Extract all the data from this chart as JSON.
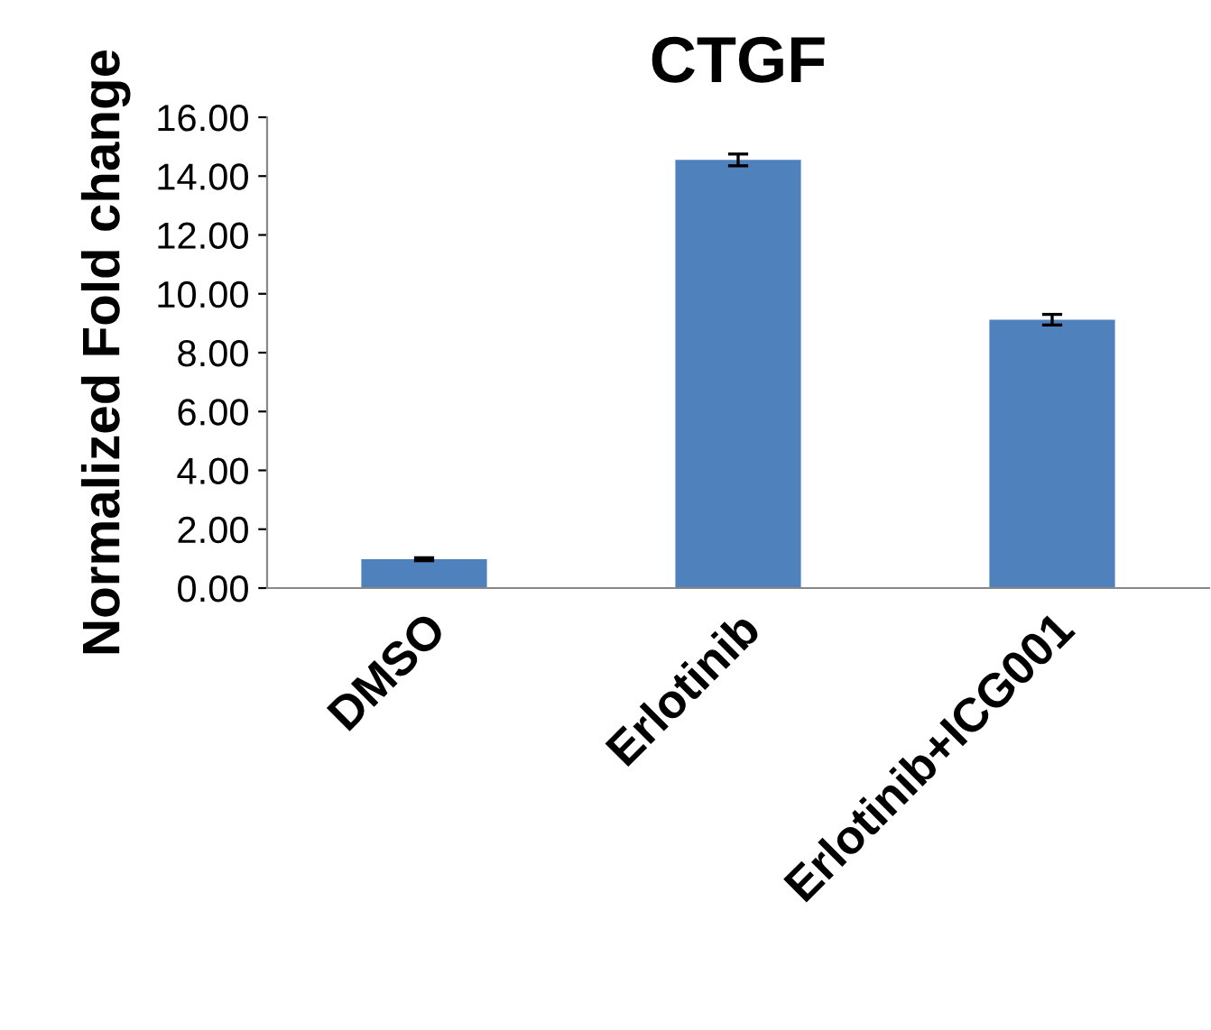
{
  "chart_data": {
    "type": "bar",
    "title": "CTGF",
    "ylabel": "Normalized Fold change",
    "categories": [
      "DMSO",
      "Erlotinib",
      "Erlotinib+ICG001"
    ],
    "values": [
      0.98,
      14.55,
      9.12
    ],
    "errors": [
      0.05,
      0.2,
      0.18
    ],
    "color": "#4f81bd",
    "ylim": [
      0,
      16
    ],
    "yticks": [
      {
        "value": 0,
        "label": "0.00"
      },
      {
        "value": 2,
        "label": "2.00"
      },
      {
        "value": 4,
        "label": "4.00"
      },
      {
        "value": 6,
        "label": "6.00"
      },
      {
        "value": 8,
        "label": "8.00"
      },
      {
        "value": 10,
        "label": "10.00"
      },
      {
        "value": 12,
        "label": "12.00"
      },
      {
        "value": 14,
        "label": "14.00"
      },
      {
        "value": 16,
        "label": "16.00"
      }
    ],
    "grid": false,
    "legend": false
  }
}
